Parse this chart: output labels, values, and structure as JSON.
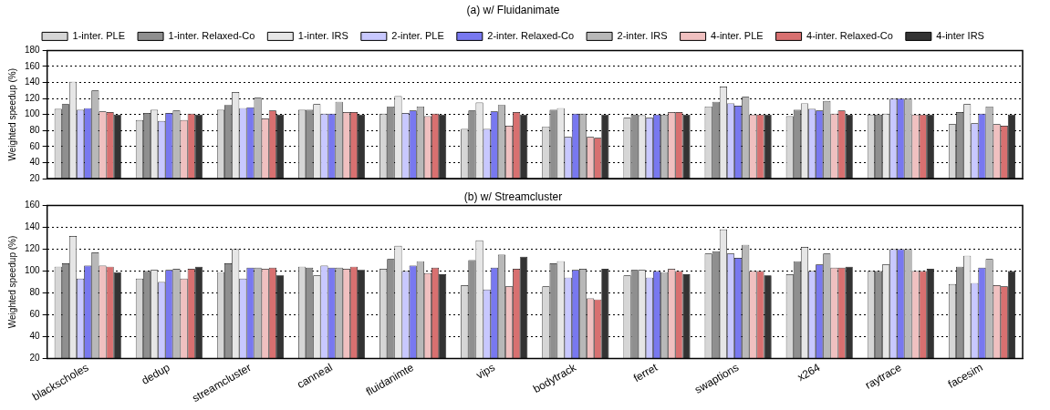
{
  "chart_data": [
    {
      "type": "bar",
      "title": "(a) w/ Fluidanimate",
      "ylabel": "Weighted speedup (%)",
      "categories": [
        null,
        null,
        null,
        null,
        null,
        null,
        null,
        null,
        null,
        null,
        null,
        null
      ],
      "series": [
        {
          "name": "1-inter. PLE",
          "color": "#d6d6d6",
          "values": [
            107,
            93,
            106,
            106,
            101,
            82,
            85,
            96,
            110,
            98,
            100,
            88
          ]
        },
        {
          "name": "1-inter. Relaxed-Co",
          "color": "#8f8f8f",
          "values": [
            113,
            102,
            112,
            106,
            110,
            105,
            106,
            100,
            116,
            106,
            100,
            103
          ]
        },
        {
          "name": "1-inter. IRS",
          "color": "#e6e6e6",
          "values": [
            141,
            106,
            128,
            113,
            123,
            115,
            108,
            99,
            135,
            114,
            101,
            113
          ]
        },
        {
          "name": "2-inter. PLE",
          "color": "#c8c8ff",
          "values": [
            106,
            92,
            108,
            101,
            102,
            82,
            72,
            96,
            114,
            107,
            120,
            89
          ]
        },
        {
          "name": "2-inter. Relaxed-Co",
          "color": "#7878f0",
          "values": [
            108,
            102,
            109,
            101,
            105,
            104,
            101,
            100,
            111,
            105,
            120,
            101
          ]
        },
        {
          "name": "2-inter. IRS",
          "color": "#b8b8b8",
          "values": [
            130,
            105,
            121,
            116,
            110,
            112,
            101,
            100,
            122,
            117,
            120,
            110
          ]
        },
        {
          "name": "4-inter. PLE",
          "color": "#f0c0c0",
          "values": [
            104,
            93,
            95,
            103,
            98,
            86,
            72,
            103,
            100,
            101,
            100,
            88
          ]
        },
        {
          "name": "4-inter. Relaxed-Co",
          "color": "#d87070",
          "values": [
            103,
            101,
            105,
            103,
            101,
            103,
            71,
            103,
            100,
            105,
            100,
            86
          ]
        },
        {
          "name": "4-inter IRS",
          "color": "#333333",
          "values": [
            100,
            100,
            100,
            100,
            100,
            100,
            100,
            100,
            100,
            100,
            100,
            100
          ]
        }
      ],
      "ylim": [
        20,
        180
      ],
      "yticks": [
        20,
        40,
        60,
        80,
        100,
        120,
        140,
        160,
        180
      ],
      "grid": "y",
      "legend": "top",
      "tick_labels": "y"
    },
    {
      "type": "bar",
      "title": "(b) w/ Streamcluster",
      "ylabel": "Weighted speedup (%)",
      "categories": [
        "blackscholes",
        "dedup",
        "streamcluster",
        "canneal",
        "fluidanimte",
        "vips",
        "bodytrack",
        "ferret",
        "swaptions",
        "x264",
        "raytrace",
        "facesim"
      ],
      "series": [
        {
          "color": "#d6d6d6",
          "values": [
            104,
            93,
            99,
            104,
            102,
            87,
            86,
            96,
            116,
            97,
            100,
            88
          ]
        },
        {
          "color": "#8f8f8f",
          "values": [
            107,
            100,
            107,
            103,
            111,
            110,
            107,
            101,
            118,
            109,
            100,
            104
          ]
        },
        {
          "color": "#e6e6e6",
          "values": [
            132,
            101,
            120,
            96,
            123,
            128,
            109,
            101,
            138,
            122,
            106,
            114
          ]
        },
        {
          "color": "#c8c8ff",
          "values": [
            93,
            90,
            93,
            105,
            100,
            83,
            94,
            94,
            116,
            100,
            120,
            89
          ]
        },
        {
          "color": "#7878f0",
          "values": [
            105,
            101,
            103,
            103,
            105,
            103,
            101,
            100,
            112,
            106,
            120,
            103
          ]
        },
        {
          "color": "#b8b8b8",
          "values": [
            117,
            102,
            103,
            103,
            109,
            115,
            102,
            99,
            124,
            116,
            120,
            111
          ]
        },
        {
          "color": "#f0c0c0",
          "values": [
            105,
            93,
            102,
            102,
            98,
            86,
            75,
            102,
            100,
            103,
            100,
            87
          ]
        },
        {
          "color": "#d87070",
          "values": [
            104,
            102,
            103,
            104,
            103,
            102,
            74,
            100,
            100,
            103,
            100,
            86
          ]
        },
        {
          "color": "#333333",
          "values": [
            99,
            104,
            96,
            101,
            97,
            113,
            102,
            97,
            96,
            104,
            102,
            100
          ]
        }
      ],
      "ylim": [
        20,
        160
      ],
      "yticks": [
        20,
        40,
        60,
        80,
        100,
        120,
        140,
        160
      ],
      "grid": "y",
      "legend": false
    }
  ]
}
